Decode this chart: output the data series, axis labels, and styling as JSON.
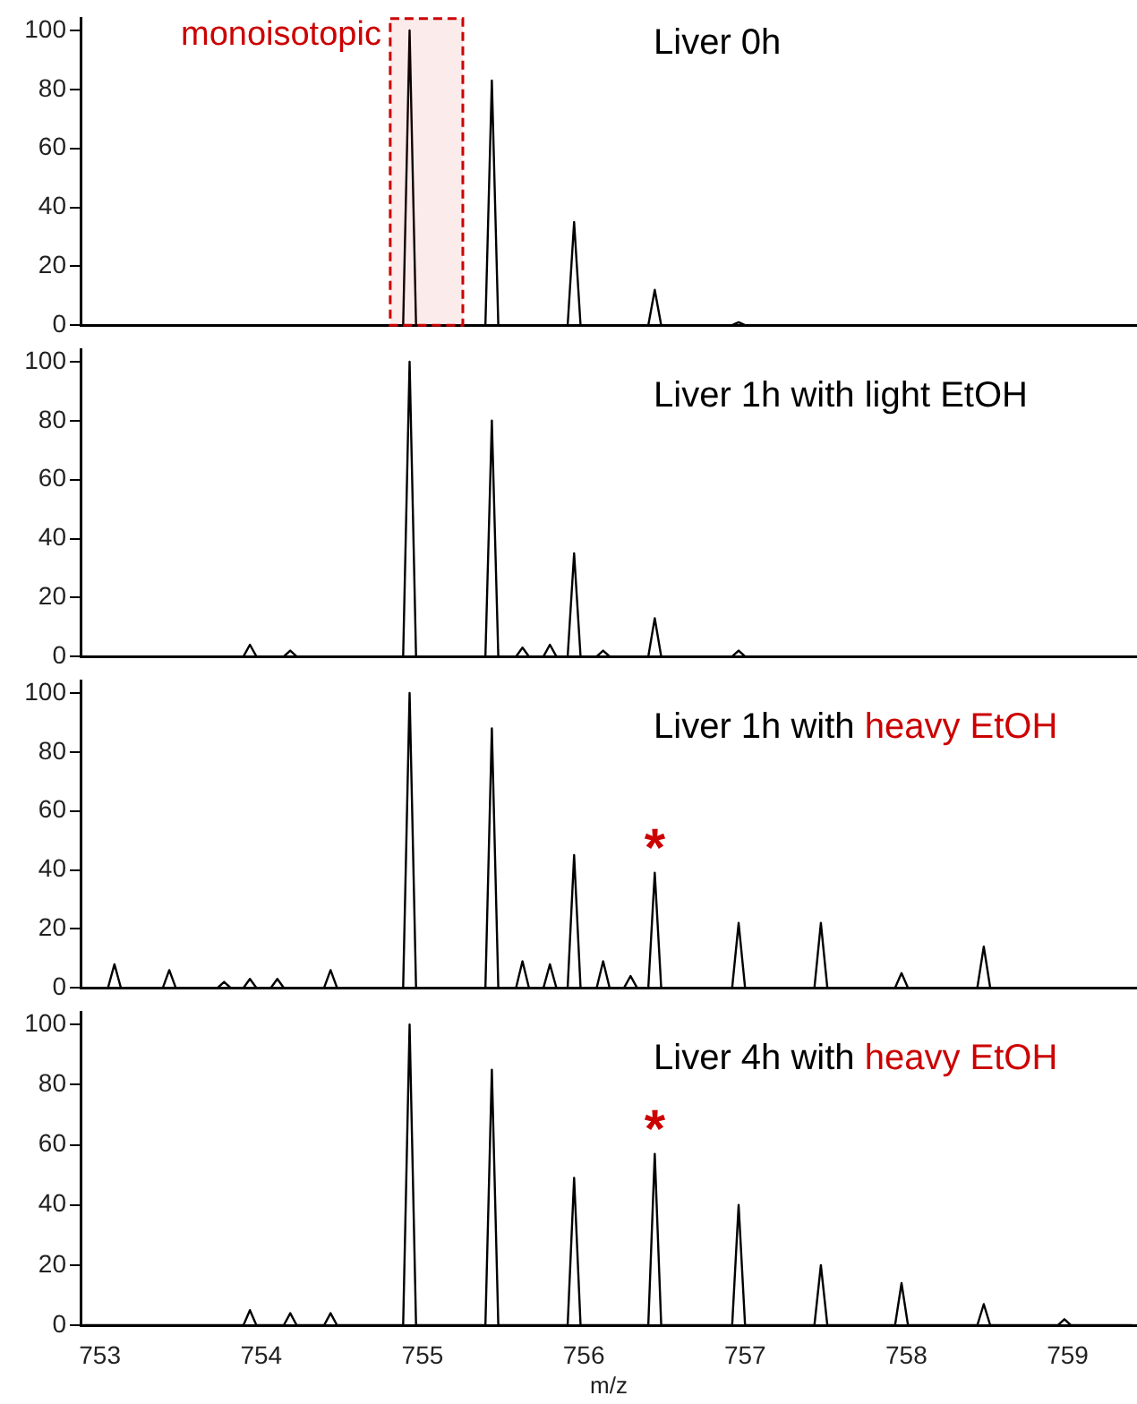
{
  "chart_data": [
    {
      "type": "line",
      "title": "Liver 0h",
      "color": "#000000",
      "xlim": [
        752.88,
        759.43
      ],
      "xticks": [
        753,
        754,
        755,
        756,
        757,
        758,
        759
      ],
      "ylim": [
        0,
        104
      ],
      "yticks": [
        0,
        20,
        40,
        60,
        80,
        100
      ],
      "tick_labels": "y",
      "bands": [
        {
          "axis": "x",
          "from": 754.8,
          "to": 755.25,
          "label": "monoisotopic",
          "color": "#cc0000"
        }
      ],
      "x": [
        752.9,
        754.88,
        754.92,
        754.96,
        755.39,
        755.43,
        755.47,
        755.9,
        755.94,
        755.98,
        756.4,
        756.44,
        756.48,
        756.92,
        756.96,
        757.0,
        759.4
      ],
      "values": [
        0,
        0,
        100,
        0,
        0,
        83,
        0,
        0,
        35,
        0,
        0,
        12,
        0,
        0,
        1,
        0,
        0
      ]
    },
    {
      "type": "line",
      "title": "Liver 1h with light EtOH",
      "color": "#000000",
      "xlim": [
        752.88,
        759.43
      ],
      "xticks": [
        753,
        754,
        755,
        756,
        757,
        758,
        759
      ],
      "ylim": [
        0,
        104
      ],
      "yticks": [
        0,
        20,
        40,
        60,
        80,
        100
      ],
      "tick_labels": "y",
      "x": [
        752.9,
        753.89,
        753.93,
        753.97,
        754.14,
        754.18,
        754.22,
        754.88,
        754.92,
        754.96,
        755.39,
        755.43,
        755.47,
        755.58,
        755.62,
        755.66,
        755.75,
        755.79,
        755.83,
        755.9,
        755.94,
        755.98,
        756.08,
        756.12,
        756.16,
        756.4,
        756.44,
        756.48,
        756.92,
        756.96,
        757.0,
        759.4
      ],
      "values": [
        0,
        0,
        4,
        0,
        0,
        2,
        0,
        0,
        100,
        0,
        0,
        80,
        0,
        0,
        3,
        0,
        0,
        4,
        0,
        0,
        35,
        0,
        0,
        2,
        0,
        0,
        13,
        0,
        0,
        2,
        0,
        0
      ]
    },
    {
      "type": "line",
      "title": "Liver 1h with",
      "subtitle": "heavy EtOH",
      "color": "#000000",
      "xlim": [
        752.88,
        759.43
      ],
      "xticks": [
        753,
        754,
        755,
        756,
        757,
        758,
        759
      ],
      "ylim": [
        0,
        104
      ],
      "yticks": [
        0,
        20,
        40,
        60,
        80,
        100
      ],
      "tick_labels": "y",
      "annotations": [
        {
          "text": "*",
          "x": 756.44,
          "y": 39
        }
      ],
      "x": [
        752.9,
        753.05,
        753.09,
        753.13,
        753.39,
        753.43,
        753.47,
        753.73,
        753.77,
        753.81,
        753.89,
        753.93,
        753.97,
        754.06,
        754.1,
        754.14,
        754.39,
        754.43,
        754.47,
        754.88,
        754.92,
        754.96,
        755.39,
        755.43,
        755.47,
        755.58,
        755.62,
        755.66,
        755.75,
        755.79,
        755.83,
        755.9,
        755.94,
        755.98,
        756.08,
        756.12,
        756.16,
        756.25,
        756.29,
        756.33,
        756.4,
        756.44,
        756.48,
        756.92,
        756.96,
        757.0,
        757.43,
        757.47,
        757.51,
        757.93,
        757.97,
        758.01,
        758.44,
        758.48,
        758.52,
        759.4
      ],
      "values": [
        0,
        0,
        8,
        0,
        0,
        6,
        0,
        0,
        2,
        0,
        0,
        3,
        0,
        0,
        3,
        0,
        0,
        6,
        0,
        0,
        100,
        0,
        0,
        88,
        0,
        0,
        9,
        0,
        0,
        8,
        0,
        0,
        45,
        0,
        0,
        9,
        0,
        0,
        4,
        0,
        0,
        39,
        0,
        0,
        22,
        0,
        0,
        22,
        0,
        0,
        5,
        0,
        0,
        14,
        0,
        0
      ]
    },
    {
      "type": "line",
      "title": "Liver 4h with",
      "subtitle": "heavy EtOH",
      "color": "#000000",
      "xlabel": "m/z",
      "xlim": [
        752.88,
        759.43
      ],
      "xticks": [
        753,
        754,
        755,
        756,
        757,
        758,
        759
      ],
      "ylim": [
        0,
        104
      ],
      "yticks": [
        0,
        20,
        40,
        60,
        80,
        100
      ],
      "annotations": [
        {
          "text": "*",
          "x": 756.44,
          "y": 57
        }
      ],
      "x": [
        752.9,
        753.89,
        753.93,
        753.97,
        754.14,
        754.18,
        754.22,
        754.39,
        754.43,
        754.47,
        754.88,
        754.92,
        754.96,
        755.39,
        755.43,
        755.47,
        755.9,
        755.94,
        755.98,
        756.4,
        756.44,
        756.48,
        756.92,
        756.96,
        757.0,
        757.43,
        757.47,
        757.51,
        757.93,
        757.97,
        758.01,
        758.44,
        758.48,
        758.52,
        758.94,
        758.98,
        759.02,
        759.4
      ],
      "values": [
        0,
        0,
        5,
        0,
        0,
        4,
        0,
        0,
        4,
        0,
        0,
        100,
        0,
        0,
        85,
        0,
        0,
        49,
        0,
        0,
        57,
        0,
        0,
        40,
        0,
        0,
        20,
        0,
        0,
        14,
        0,
        0,
        7,
        0,
        0,
        2,
        0,
        0
      ]
    }
  ]
}
